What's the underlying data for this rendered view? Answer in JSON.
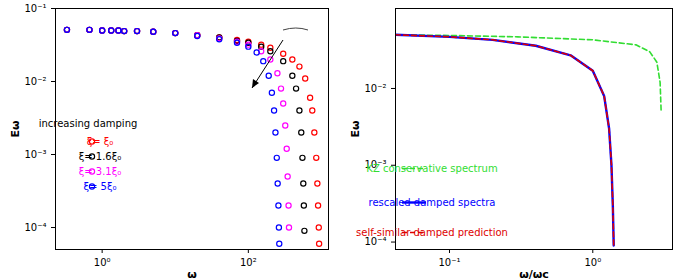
{
  "chart_data": [
    {
      "type": "scatter",
      "x_label": "ω",
      "y_label": "Eω",
      "log": true,
      "xlim": [
        0.23,
        1250
      ],
      "ylim": [
        5e-05,
        0.1
      ],
      "xticks": [
        {
          "value": 1,
          "label": "10⁰"
        },
        {
          "value": 100,
          "label": "10²"
        }
      ],
      "yticks": [
        {
          "value": 0.0001,
          "label": "10⁻⁴"
        },
        {
          "value": 0.001,
          "label": "10⁻³"
        },
        {
          "value": 0.01,
          "label": "10⁻²"
        },
        {
          "value": 0.1,
          "label": "10⁻¹"
        }
      ],
      "annotations": [
        "increasing damping"
      ],
      "series": [
        {
          "name": "ξ= ξ₀",
          "color": "#ff0000",
          "marker": "circle",
          "x": [
            0.33,
            0.67,
            1,
            1.33,
            1.67,
            2,
            3,
            5,
            10,
            20,
            40,
            70,
            100,
            150,
            200,
            300,
            400,
            500,
            600,
            700,
            750,
            800,
            850,
            880,
            900,
            920,
            930
          ],
          "values": [
            0.051,
            0.051,
            0.05,
            0.05,
            0.05,
            0.049,
            0.049,
            0.048,
            0.046,
            0.043,
            0.04,
            0.037,
            0.035,
            0.032,
            0.029,
            0.024,
            0.02,
            0.016,
            0.011,
            0.006,
            0.004,
            0.002,
            0.0009,
            0.0004,
            0.0002,
            0.0001,
            6e-05
          ]
        },
        {
          "name": "ξ= 1.6ξ₀",
          "color": "#000000",
          "marker": "circle",
          "x": [
            0.33,
            0.67,
            1,
            1.33,
            1.67,
            2,
            3,
            5,
            10,
            20,
            40,
            70,
            100,
            150,
            200,
            300,
            400,
            450,
            500,
            530,
            550,
            565,
            575,
            585
          ],
          "values": [
            0.051,
            0.051,
            0.05,
            0.05,
            0.05,
            0.049,
            0.049,
            0.048,
            0.046,
            0.043,
            0.04,
            0.036,
            0.034,
            0.03,
            0.026,
            0.019,
            0.012,
            0.008,
            0.004,
            0.002,
            0.0009,
            0.0004,
            0.0002,
            9e-05
          ]
        },
        {
          "name": "ξ= 3.1ξ₀",
          "color": "#ff00ff",
          "marker": "circle",
          "x": [
            0.33,
            0.67,
            1,
            1.33,
            1.67,
            2,
            3,
            5,
            10,
            20,
            40,
            70,
            100,
            150,
            200,
            250,
            280,
            300,
            320,
            335,
            345,
            355,
            360
          ],
          "values": [
            0.051,
            0.051,
            0.05,
            0.05,
            0.05,
            0.049,
            0.049,
            0.048,
            0.046,
            0.043,
            0.039,
            0.035,
            0.032,
            0.026,
            0.02,
            0.013,
            0.008,
            0.005,
            0.0025,
            0.0012,
            0.0005,
            0.0002,
            0.0001
          ]
        },
        {
          "name": "ξ= 5ξ₀",
          "color": "#0000ff",
          "marker": "circle",
          "x": [
            0.33,
            0.67,
            1,
            1.33,
            1.67,
            2,
            3,
            5,
            10,
            20,
            40,
            70,
            100,
            130,
            160,
            190,
            210,
            225,
            235,
            245,
            252,
            258,
            262,
            265
          ],
          "values": [
            0.051,
            0.051,
            0.05,
            0.05,
            0.05,
            0.049,
            0.049,
            0.048,
            0.046,
            0.042,
            0.038,
            0.034,
            0.03,
            0.025,
            0.019,
            0.012,
            0.007,
            0.004,
            0.002,
            0.0009,
            0.0004,
            0.0002,
            0.0001,
            6e-05
          ]
        }
      ]
    },
    {
      "type": "line",
      "x_label": "ω/ωc",
      "y_label": "Eω",
      "log": true,
      "xlim": [
        0.042,
        3.6
      ],
      "ylim": [
        8e-05,
        0.11
      ],
      "xticks": [
        {
          "value": 0.1,
          "label": "10⁻¹"
        },
        {
          "value": 1,
          "label": "10⁰"
        }
      ],
      "yticks": [
        {
          "value": 0.0001,
          "label": "10⁻⁴"
        },
        {
          "value": 0.001,
          "label": "10⁻³"
        },
        {
          "value": 0.01,
          "label": "10⁻²"
        }
      ],
      "series": [
        {
          "name": "KZ conservative spectrum",
          "color": "#33dd33",
          "line_style": "dashed",
          "x": [
            0.042,
            0.1,
            0.3,
            1,
            2,
            2.5,
            2.8,
            2.95,
            3.0
          ],
          "values": [
            0.05,
            0.049,
            0.047,
            0.043,
            0.037,
            0.03,
            0.022,
            0.012,
            0.005
          ]
        },
        {
          "name": "rescaled damped spectra",
          "color": "#0000ff",
          "line_style": "solid",
          "x": [
            0.042,
            0.1,
            0.2,
            0.4,
            0.7,
            1.0,
            1.2,
            1.3,
            1.35,
            1.38,
            1.4
          ],
          "values": [
            0.05,
            0.047,
            0.043,
            0.036,
            0.027,
            0.017,
            0.008,
            0.003,
            0.001,
            0.0003,
            9e-05
          ]
        },
        {
          "name": "self-similar damped prediction",
          "color": "#dd0000",
          "line_style": "dashed",
          "x": [
            0.042,
            0.1,
            0.2,
            0.4,
            0.7,
            1.0,
            1.2,
            1.3,
            1.35,
            1.38,
            1.4
          ],
          "values": [
            0.05,
            0.047,
            0.043,
            0.036,
            0.027,
            0.017,
            0.008,
            0.003,
            0.001,
            0.0003,
            9e-05
          ]
        }
      ]
    }
  ]
}
